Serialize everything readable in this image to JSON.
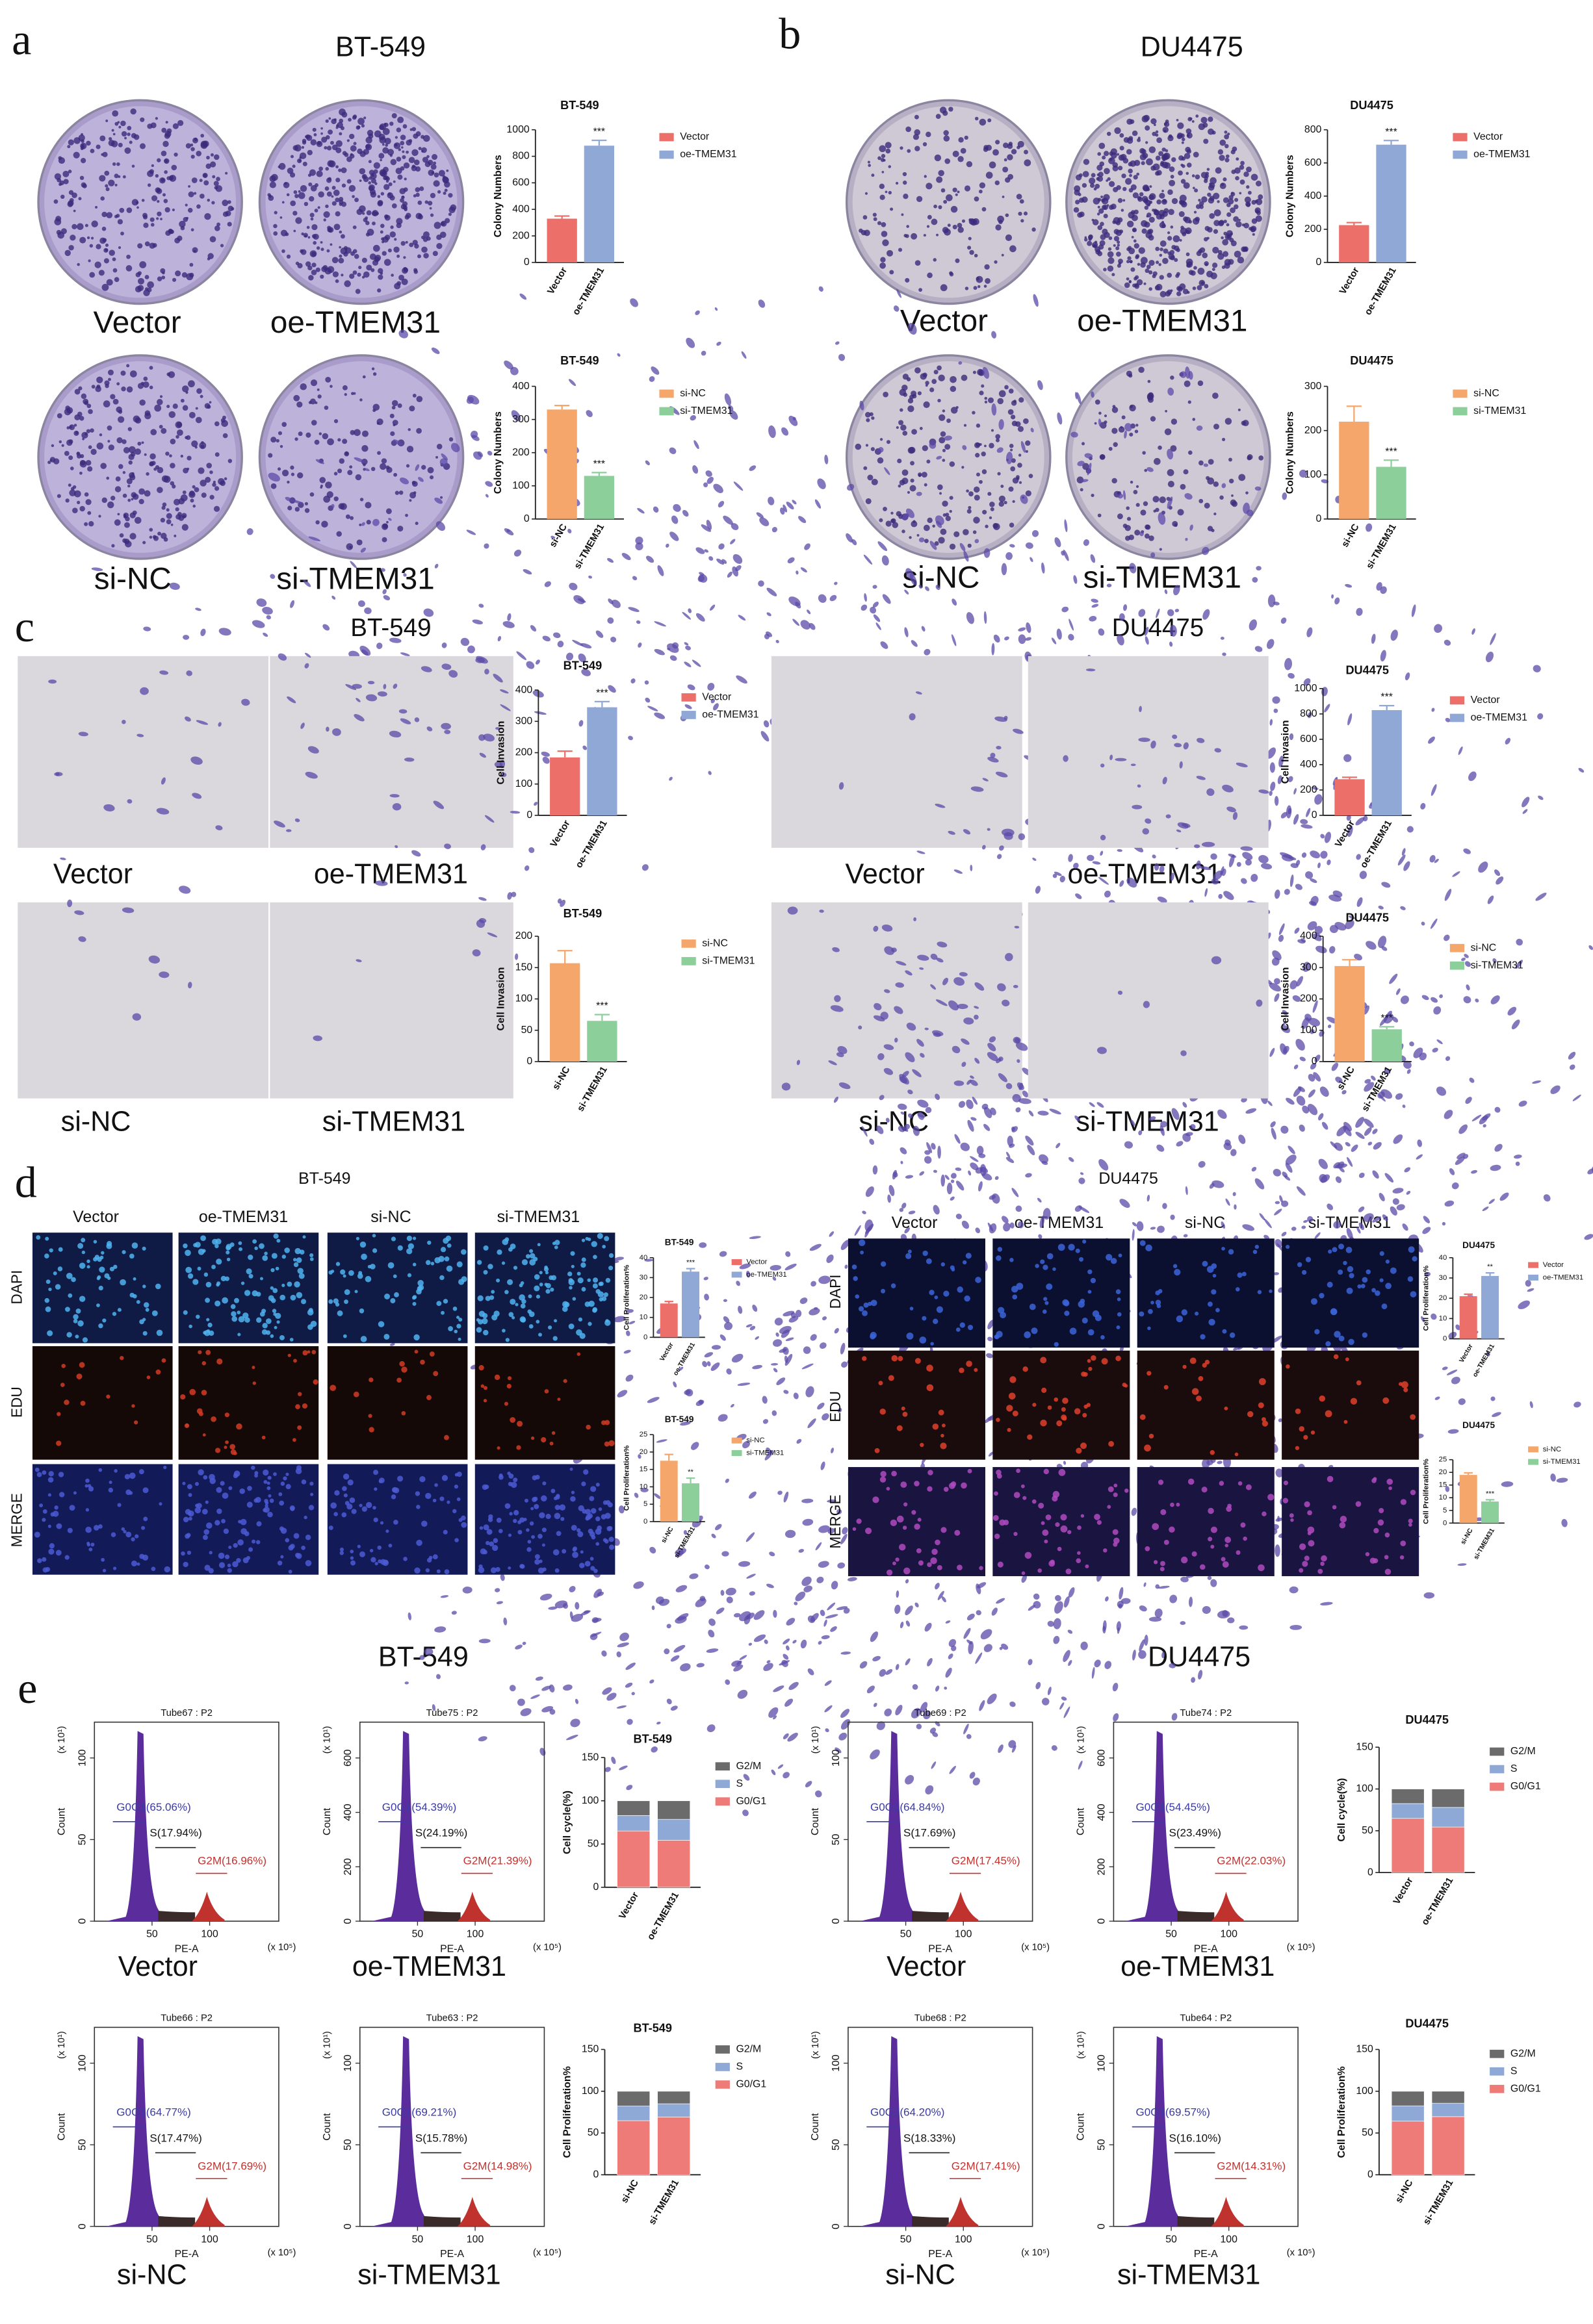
{
  "panel_letters": [
    "a",
    "b",
    "c",
    "d",
    "e"
  ],
  "cell_lines": [
    "BT-549",
    "DU4475"
  ],
  "groups": [
    "Vector",
    "oe-TMEM31",
    "si-NC",
    "si-TMEM31"
  ],
  "stains": [
    "DAPI",
    "EDU",
    "MERGE"
  ],
  "flow_axes": {
    "ylabel": "Count",
    "xlabel": "PE-A",
    "ymult": "(x 10¹)",
    "xmult": "(x 10⁵)",
    "xticks": [
      50,
      100
    ]
  },
  "flow": [
    {
      "tube": "Tube67 : P2",
      "g0g1": "G0G1(65.06%)",
      "s": "S(17.94%)",
      "g2m": "G2M(16.96%)",
      "yticks": [
        0,
        50,
        100
      ]
    },
    {
      "tube": "Tube75 : P2",
      "g0g1": "G0G1(54.39%)",
      "s": "S(24.19%)",
      "g2m": "G2M(21.39%)",
      "yticks": [
        0,
        200,
        400,
        600
      ]
    },
    {
      "tube": "Tube69 : P2",
      "g0g1": "G0G1(64.84%)",
      "s": "S(17.69%)",
      "g2m": "G2M(17.45%)",
      "yticks": [
        0,
        50,
        100
      ]
    },
    {
      "tube": "Tube74 : P2",
      "g0g1": "G0G1(54.45%)",
      "s": "S(23.49%)",
      "g2m": "G2M(22.03%)",
      "yticks": [
        0,
        200,
        400,
        600
      ]
    },
    {
      "tube": "Tube66 : P2",
      "g0g1": "G0G1(64.77%)",
      "s": "S(17.47%)",
      "g2m": "G2M(17.69%)",
      "yticks": [
        0,
        50,
        100
      ]
    },
    {
      "tube": "Tube63 : P2",
      "g0g1": "G0G1(69.21%)",
      "s": "S(15.78%)",
      "g2m": "G2M(14.98%)",
      "yticks": [
        0,
        50,
        100
      ]
    },
    {
      "tube": "Tube68 : P2",
      "g0g1": "G0G1(64.20%)",
      "s": "S(18.33%)",
      "g2m": "G2M(17.41%)",
      "yticks": [
        0,
        50,
        100
      ]
    },
    {
      "tube": "Tube64 : P2",
      "g0g1": "G0G1(69.57%)",
      "s": "S(16.10%)",
      "g2m": "G2M(14.31%)",
      "yticks": [
        0,
        50,
        100
      ]
    }
  ],
  "chart_data": [
    {
      "type": "bar",
      "title": "BT-549",
      "ylabel": "Colony Numbers",
      "categories": [
        "Vector",
        "oe-TMEM31"
      ],
      "values": [
        330,
        880
      ],
      "errors": [
        20,
        40
      ],
      "colors": [
        "#ec6f6a",
        "#90a8d5"
      ],
      "significance": "***",
      "ylim": [
        0,
        1000
      ],
      "yticks": [
        0,
        200,
        400,
        600,
        800,
        1000
      ]
    },
    {
      "type": "bar",
      "title": "BT-549",
      "ylabel": "Colony Numbers",
      "categories": [
        "si-NC",
        "si-TMEM31"
      ],
      "values": [
        330,
        130
      ],
      "errors": [
        12,
        10
      ],
      "colors": [
        "#f5a66b",
        "#8ccf9b"
      ],
      "significance": "***",
      "ylim": [
        0,
        400
      ],
      "yticks": [
        0,
        100,
        200,
        300,
        400
      ]
    },
    {
      "type": "bar",
      "title": "DU4475",
      "ylabel": "Colony Numbers",
      "categories": [
        "Vector",
        "oe-TMEM31"
      ],
      "values": [
        225,
        710
      ],
      "errors": [
        15,
        25
      ],
      "colors": [
        "#ec6f6a",
        "#90a8d5"
      ],
      "significance": "***",
      "ylim": [
        0,
        800
      ],
      "yticks": [
        0,
        200,
        400,
        600,
        800
      ]
    },
    {
      "type": "bar",
      "title": "DU4475",
      "ylabel": "Colony Numbers",
      "categories": [
        "si-NC",
        "si-TMEM31"
      ],
      "values": [
        220,
        118
      ],
      "errors": [
        35,
        15
      ],
      "colors": [
        "#f5a66b",
        "#8ccf9b"
      ],
      "significance": "***",
      "ylim": [
        0,
        300
      ],
      "yticks": [
        0,
        100,
        200,
        300
      ]
    },
    {
      "type": "bar",
      "title": "BT-549",
      "ylabel": "Cell Invasion",
      "categories": [
        "Vector",
        "oe-TMEM31"
      ],
      "values": [
        185,
        345
      ],
      "errors": [
        20,
        18
      ],
      "colors": [
        "#ec6f6a",
        "#90a8d5"
      ],
      "significance": "***",
      "ylim": [
        0,
        400
      ],
      "yticks": [
        0,
        100,
        200,
        300,
        400
      ]
    },
    {
      "type": "bar",
      "title": "BT-549",
      "ylabel": "Cell Invasion",
      "categories": [
        "si-NC",
        "si-TMEM31"
      ],
      "values": [
        157,
        65
      ],
      "errors": [
        20,
        10
      ],
      "colors": [
        "#f5a66b",
        "#8ccf9b"
      ],
      "significance": "***",
      "ylim": [
        0,
        200
      ],
      "yticks": [
        0,
        50,
        100,
        150,
        200
      ]
    },
    {
      "type": "bar",
      "title": "DU4475",
      "ylabel": "Cell Invasion",
      "categories": [
        "Vector",
        "oe-TMEM31"
      ],
      "values": [
        285,
        830
      ],
      "errors": [
        15,
        35
      ],
      "colors": [
        "#ec6f6a",
        "#90a8d5"
      ],
      "significance": "***",
      "ylim": [
        0,
        1000
      ],
      "yticks": [
        0,
        200,
        400,
        600,
        800,
        1000
      ]
    },
    {
      "type": "bar",
      "title": "DU4475",
      "ylabel": "Cell Invasion",
      "categories": [
        "si-NC",
        "si-TMEM31"
      ],
      "values": [
        305,
        103
      ],
      "errors": [
        20,
        8
      ],
      "colors": [
        "#f5a66b",
        "#8ccf9b"
      ],
      "significance": "***",
      "ylim": [
        0,
        400
      ],
      "yticks": [
        0,
        100,
        200,
        300,
        400
      ]
    },
    {
      "type": "bar",
      "title": "BT-549",
      "ylabel": "Cell Proliferation%",
      "categories": [
        "Vector",
        "oe-TMEM31"
      ],
      "values": [
        17,
        33
      ],
      "errors": [
        1,
        1.5
      ],
      "colors": [
        "#ec6f6a",
        "#90a8d5"
      ],
      "significance": "***",
      "ylim": [
        0,
        40
      ],
      "yticks": [
        0,
        10,
        20,
        30,
        40
      ]
    },
    {
      "type": "bar",
      "title": "BT-549",
      "ylabel": "Cell Proliferation%",
      "categories": [
        "si-NC",
        "si-TMEM31"
      ],
      "values": [
        17.5,
        11
      ],
      "errors": [
        1.8,
        1.5
      ],
      "colors": [
        "#f5a66b",
        "#8ccf9b"
      ],
      "significance": "**",
      "ylim": [
        0,
        25
      ],
      "yticks": [
        0,
        5,
        10,
        15,
        20,
        25
      ]
    },
    {
      "type": "bar",
      "title": "DU4475",
      "ylabel": "Cell Proliferation%",
      "categories": [
        "Vector",
        "oe-TMEM31"
      ],
      "values": [
        21,
        31
      ],
      "errors": [
        1,
        1.5
      ],
      "colors": [
        "#ec6f6a",
        "#90a8d5"
      ],
      "significance": "**",
      "ylim": [
        0,
        40
      ],
      "yticks": [
        0,
        10,
        20,
        30,
        40
      ]
    },
    {
      "type": "bar",
      "title": "DU4475",
      "ylabel": "Cell Proliferation%",
      "categories": [
        "si-NC",
        "si-TMEM31"
      ],
      "values": [
        19,
        8.5
      ],
      "errors": [
        0.8,
        0.7
      ],
      "colors": [
        "#f5a66b",
        "#8ccf9b"
      ],
      "significance": "***",
      "ylim": [
        0,
        25
      ],
      "yticks": [
        0,
        5,
        10,
        15,
        20,
        25
      ]
    },
    {
      "type": "stacked_bar",
      "title": "BT-549",
      "ylabel": "Cell cycle(%)",
      "categories": [
        "Vector",
        "oe-TMEM31"
      ],
      "series": [
        {
          "name": "G0/G1",
          "color": "#ee7b78",
          "values": [
            65.06,
            54.39
          ]
        },
        {
          "name": "S",
          "color": "#8fa9d6",
          "values": [
            17.94,
            24.19
          ]
        },
        {
          "name": "G2/M",
          "color": "#6b6b6b",
          "values": [
            16.96,
            21.39
          ]
        }
      ],
      "ylim": [
        0,
        150
      ],
      "yticks": [
        0,
        50,
        100,
        150
      ]
    },
    {
      "type": "stacked_bar",
      "title": "BT-549",
      "ylabel": "Cell Proliferation%",
      "categories": [
        "si-NC",
        "si-TMEM31"
      ],
      "series": [
        {
          "name": "G0/G1",
          "color": "#ee7b78",
          "values": [
            64.77,
            69.21
          ]
        },
        {
          "name": "S",
          "color": "#8fa9d6",
          "values": [
            17.47,
            15.78
          ]
        },
        {
          "name": "G2/M",
          "color": "#6b6b6b",
          "values": [
            17.69,
            14.98
          ]
        }
      ],
      "ylim": [
        0,
        150
      ],
      "yticks": [
        0,
        50,
        100,
        150
      ]
    },
    {
      "type": "stacked_bar",
      "title": "DU4475",
      "ylabel": "Cell cycle(%)",
      "categories": [
        "Vector",
        "oe-TMEM31"
      ],
      "series": [
        {
          "name": "G0/G1",
          "color": "#ee7b78",
          "values": [
            64.84,
            54.45
          ]
        },
        {
          "name": "S",
          "color": "#8fa9d6",
          "values": [
            17.69,
            23.49
          ]
        },
        {
          "name": "G2/M",
          "color": "#6b6b6b",
          "values": [
            17.45,
            22.03
          ]
        }
      ],
      "ylim": [
        0,
        150
      ],
      "yticks": [
        0,
        50,
        100,
        150
      ]
    },
    {
      "type": "stacked_bar",
      "title": "DU4475",
      "ylabel": "Cell Proliferation%",
      "categories": [
        "si-NC",
        "si-TMEM31"
      ],
      "series": [
        {
          "name": "G0/G1",
          "color": "#ee7b78",
          "values": [
            64.2,
            69.57
          ]
        },
        {
          "name": "S",
          "color": "#8fa9d6",
          "values": [
            18.33,
            16.1
          ]
        },
        {
          "name": "G2/M",
          "color": "#6b6b6b",
          "values": [
            17.41,
            14.31
          ]
        }
      ],
      "ylim": [
        0,
        150
      ],
      "yticks": [
        0,
        50,
        100,
        150
      ]
    }
  ]
}
